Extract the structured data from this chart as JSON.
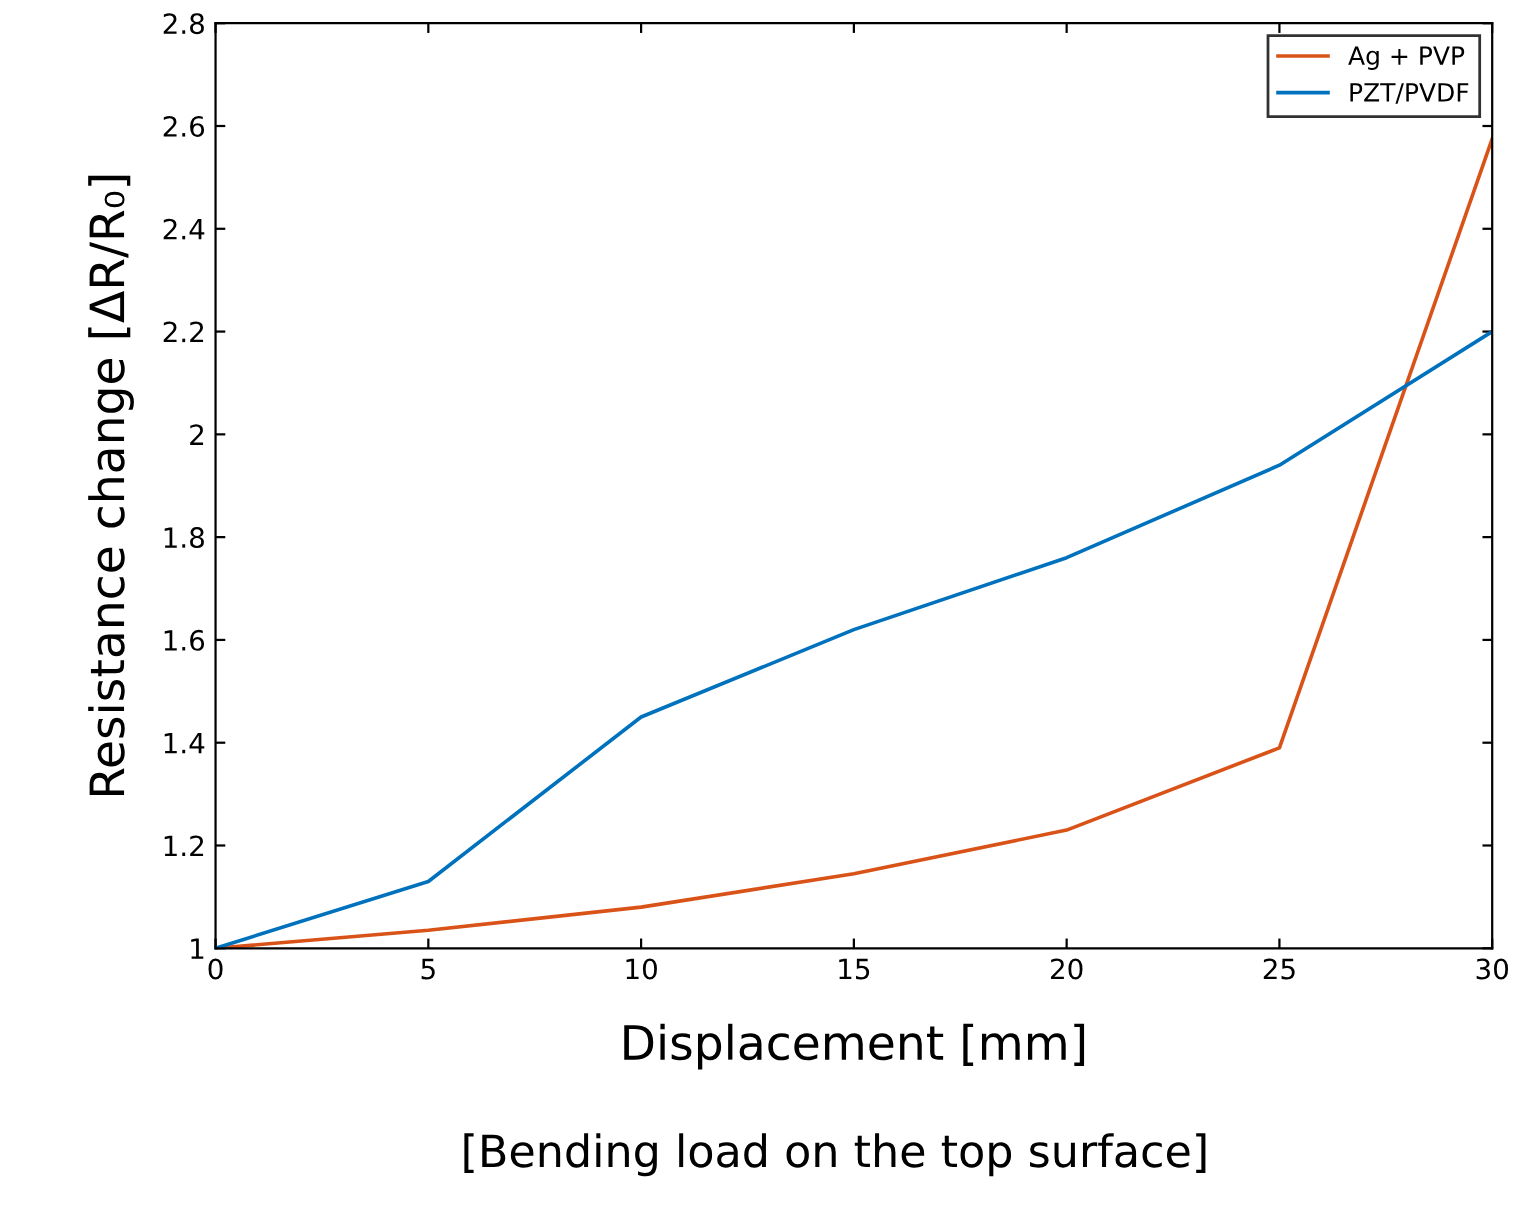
{
  "chart_data": {
    "type": "line",
    "xlabel": "Displacement [mm]",
    "ylabel": "Resistance change [ΔR/R₀]",
    "x": [
      0,
      5,
      10,
      15,
      20,
      25,
      30
    ],
    "series": [
      {
        "name": "Ag + PVP",
        "color": "#d95319",
        "values": [
          1.0,
          1.035,
          1.08,
          1.145,
          1.23,
          1.39,
          2.575
        ]
      },
      {
        "name": "PZT/PVDF",
        "color": "#0072bd",
        "values": [
          1.0,
          1.13,
          1.45,
          1.62,
          1.76,
          1.94,
          2.2
        ]
      }
    ],
    "xlim": [
      0,
      30
    ],
    "ylim": [
      1,
      2.8
    ],
    "xticks": [
      0,
      5,
      10,
      15,
      20,
      25,
      30
    ],
    "yticks": [
      1,
      1.2,
      1.4,
      1.6,
      1.8,
      2,
      2.2,
      2.4,
      2.6,
      2.8
    ],
    "legend": "top right",
    "grid": false,
    "annotations": [
      "[Bending load on the top surface]"
    ]
  }
}
